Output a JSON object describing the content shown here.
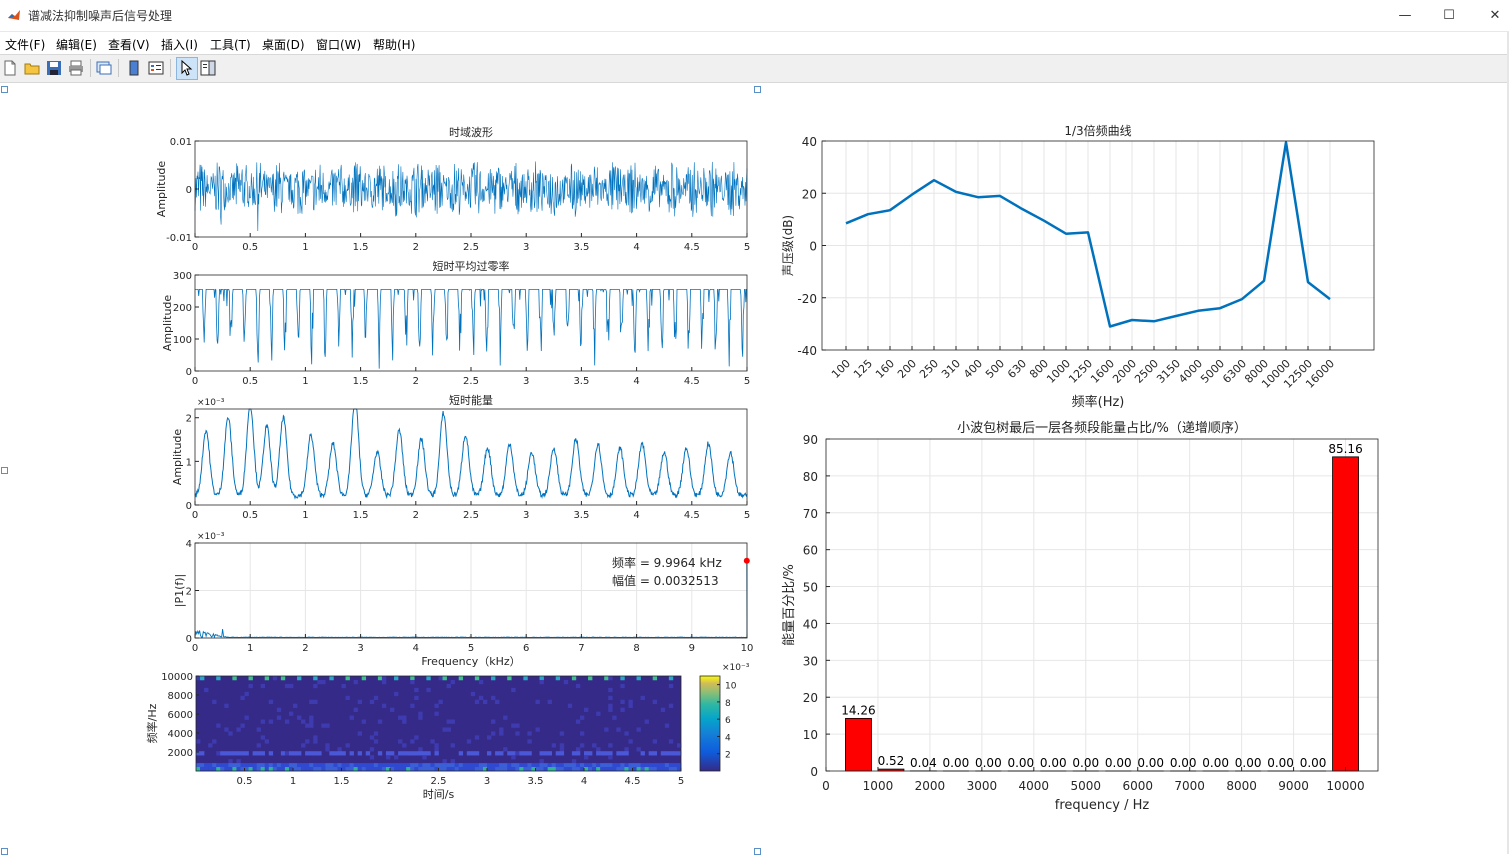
{
  "window": {
    "title": "谱减法抑制噪声后信号处理",
    "minimize": "—",
    "maximize": "☐",
    "close": "✕"
  },
  "menu": [
    "文件(F)",
    "编辑(E)",
    "查看(V)",
    "插入(I)",
    "工具(T)",
    "桌面(D)",
    "窗口(W)",
    "帮助(H)"
  ],
  "toolbar_icons": [
    "new-file-icon",
    "open-folder-icon",
    "save-icon",
    "print-icon",
    "link-plot-icon",
    "colorbar-icon",
    "legend-icon",
    "pointer-icon",
    "property-inspector-icon"
  ],
  "colors": {
    "line": "#0072bd",
    "bar": "#ff0000",
    "accent_point": "#ff0000"
  },
  "chart_data": [
    {
      "type": "line",
      "title": "时域波形",
      "xlabel": "",
      "ylabel": "Amplitude",
      "xlim": [
        0,
        5
      ],
      "ylim": [
        -0.01,
        0.01
      ],
      "xticks": [
        "0",
        "0.5",
        "1",
        "1.5",
        "2",
        "2.5",
        "3",
        "3.5",
        "4",
        "4.5",
        "5"
      ],
      "yticks": [
        "-0.01",
        "0",
        "0.01"
      ],
      "note": "dense noise-like waveform, amplitude about ±0.006"
    },
    {
      "type": "line",
      "title": "短时平均过零率",
      "xlabel": "",
      "ylabel": "Amplitude",
      "xlim": [
        0,
        5
      ],
      "ylim": [
        0,
        300
      ],
      "xticks": [
        "0",
        "0.5",
        "1",
        "1.5",
        "2",
        "2.5",
        "3",
        "3.5",
        "4",
        "4.5",
        "5"
      ],
      "yticks": [
        "0",
        "100",
        "200",
        "300"
      ],
      "note": "mostly at 255 with periodic dips toward 0–150"
    },
    {
      "type": "line",
      "title": "短时能量",
      "xlabel": "",
      "ylabel": "Amplitude",
      "xlim": [
        0,
        5
      ],
      "ylim": [
        0,
        2.2
      ],
      "exponent": "×10^{-3}",
      "xticks": [
        "0",
        "0.5",
        "1",
        "1.5",
        "2",
        "2.5",
        "3",
        "3.5",
        "4",
        "4.5",
        "5"
      ],
      "yticks": [
        "0",
        "1",
        "2"
      ],
      "peaks_x": [
        0.1,
        0.3,
        0.5,
        0.65,
        0.8,
        1.05,
        1.25,
        1.45,
        1.65,
        1.85,
        2.05,
        2.25,
        2.45,
        2.65,
        2.85,
        3.05,
        3.25,
        3.45,
        3.65,
        3.85,
        4.05,
        4.25,
        4.45,
        4.65,
        4.85
      ],
      "peaks_y": [
        1.5,
        1.8,
        2.1,
        1.6,
        1.8,
        1.4,
        1.2,
        2.2,
        1.0,
        1.5,
        1.3,
        1.9,
        1.4,
        1.1,
        1.2,
        1.0,
        1.1,
        1.3,
        1.2,
        1.1,
        1.2,
        1.0,
        1.1,
        1.2,
        1.0
      ]
    },
    {
      "type": "line",
      "title": "",
      "xlabel": "Frequency（kHz）",
      "ylabel": "|P1(f)|",
      "xlim": [
        0,
        10
      ],
      "ylim": [
        0,
        4
      ],
      "exponent": "×10^{-3}",
      "xticks": [
        "0",
        "1",
        "2",
        "3",
        "4",
        "5",
        "6",
        "7",
        "8",
        "9",
        "10"
      ],
      "yticks": [
        "0",
        "2",
        "4"
      ],
      "datatip": {
        "freq_label": "频率",
        "freq_value": "9.9964 kHz",
        "amp_label": "幅值",
        "amp_value": "0.0032513",
        "x": 9.9964,
        "y": 3.2513
      }
    },
    {
      "type": "heatmap",
      "title": "",
      "xlabel": "时间/s",
      "ylabel": "频率/Hz",
      "xlim": [
        0,
        5
      ],
      "ylim": [
        0,
        10000
      ],
      "xticks": [
        "0.5",
        "1",
        "1.5",
        "2",
        "2.5",
        "3",
        "3.5",
        "4",
        "4.5",
        "5"
      ],
      "yticks": [
        "2000",
        "4000",
        "6000",
        "8000",
        "10000"
      ],
      "colorbar": {
        "exponent": "×10^{-3}",
        "ticks": [
          "2",
          "4",
          "6",
          "8",
          "10"
        ],
        "max": 11
      }
    },
    {
      "type": "line",
      "title": "1/3倍频曲线",
      "xlabel": "频率(Hz)",
      "ylabel": "声压级(dB)",
      "ylim": [
        -40,
        40
      ],
      "yticks": [
        "-40",
        "-20",
        "0",
        "20",
        "40"
      ],
      "categories": [
        "100",
        "125",
        "160",
        "200",
        "250",
        "310",
        "400",
        "500",
        "630",
        "800",
        "1000",
        "1250",
        "1600",
        "2000",
        "2500",
        "3150",
        "4000",
        "5000",
        "6300",
        "8000",
        "10000",
        "12500",
        "16000"
      ],
      "values": [
        8.5,
        12,
        13.5,
        19.5,
        25,
        20.5,
        18.5,
        19,
        14,
        9.5,
        4.5,
        5,
        -31,
        -28.5,
        -29,
        -27,
        -25,
        -24,
        -20.5,
        -13.5,
        39.5,
        -14,
        -20.5
      ]
    },
    {
      "type": "bar",
      "title": "小波包树最后一层各频段能量占比/%（递增顺序）",
      "xlabel": "frequency / Hz",
      "ylabel": "能量百分比/%",
      "xlim": [
        0,
        10625
      ],
      "ylim": [
        0,
        90
      ],
      "xticks": [
        "0",
        "1000",
        "2000",
        "3000",
        "4000",
        "5000",
        "6000",
        "7000",
        "8000",
        "9000",
        "10000"
      ],
      "yticks": [
        "0",
        "10",
        "20",
        "30",
        "40",
        "50",
        "60",
        "70",
        "80",
        "90"
      ],
      "bar_x": [
        625,
        1250,
        1875,
        2500,
        3125,
        3750,
        4375,
        5000,
        5625,
        6250,
        6875,
        7500,
        8125,
        8750,
        9375,
        10000
      ],
      "values": [
        14.26,
        0.52,
        0.04,
        0.0,
        0.0,
        0.0,
        0.0,
        0.0,
        0.0,
        0.0,
        0.0,
        0.0,
        0.0,
        0.0,
        0.0,
        85.16
      ],
      "labels": [
        "14.26",
        "0.52",
        "0.04",
        "0.00",
        "0.00",
        "0.00",
        "0.00",
        "0.00",
        "0.00",
        "0.00",
        "0.00",
        "0.00",
        "0.00",
        "0.00",
        "0.00",
        "85.16"
      ]
    }
  ]
}
